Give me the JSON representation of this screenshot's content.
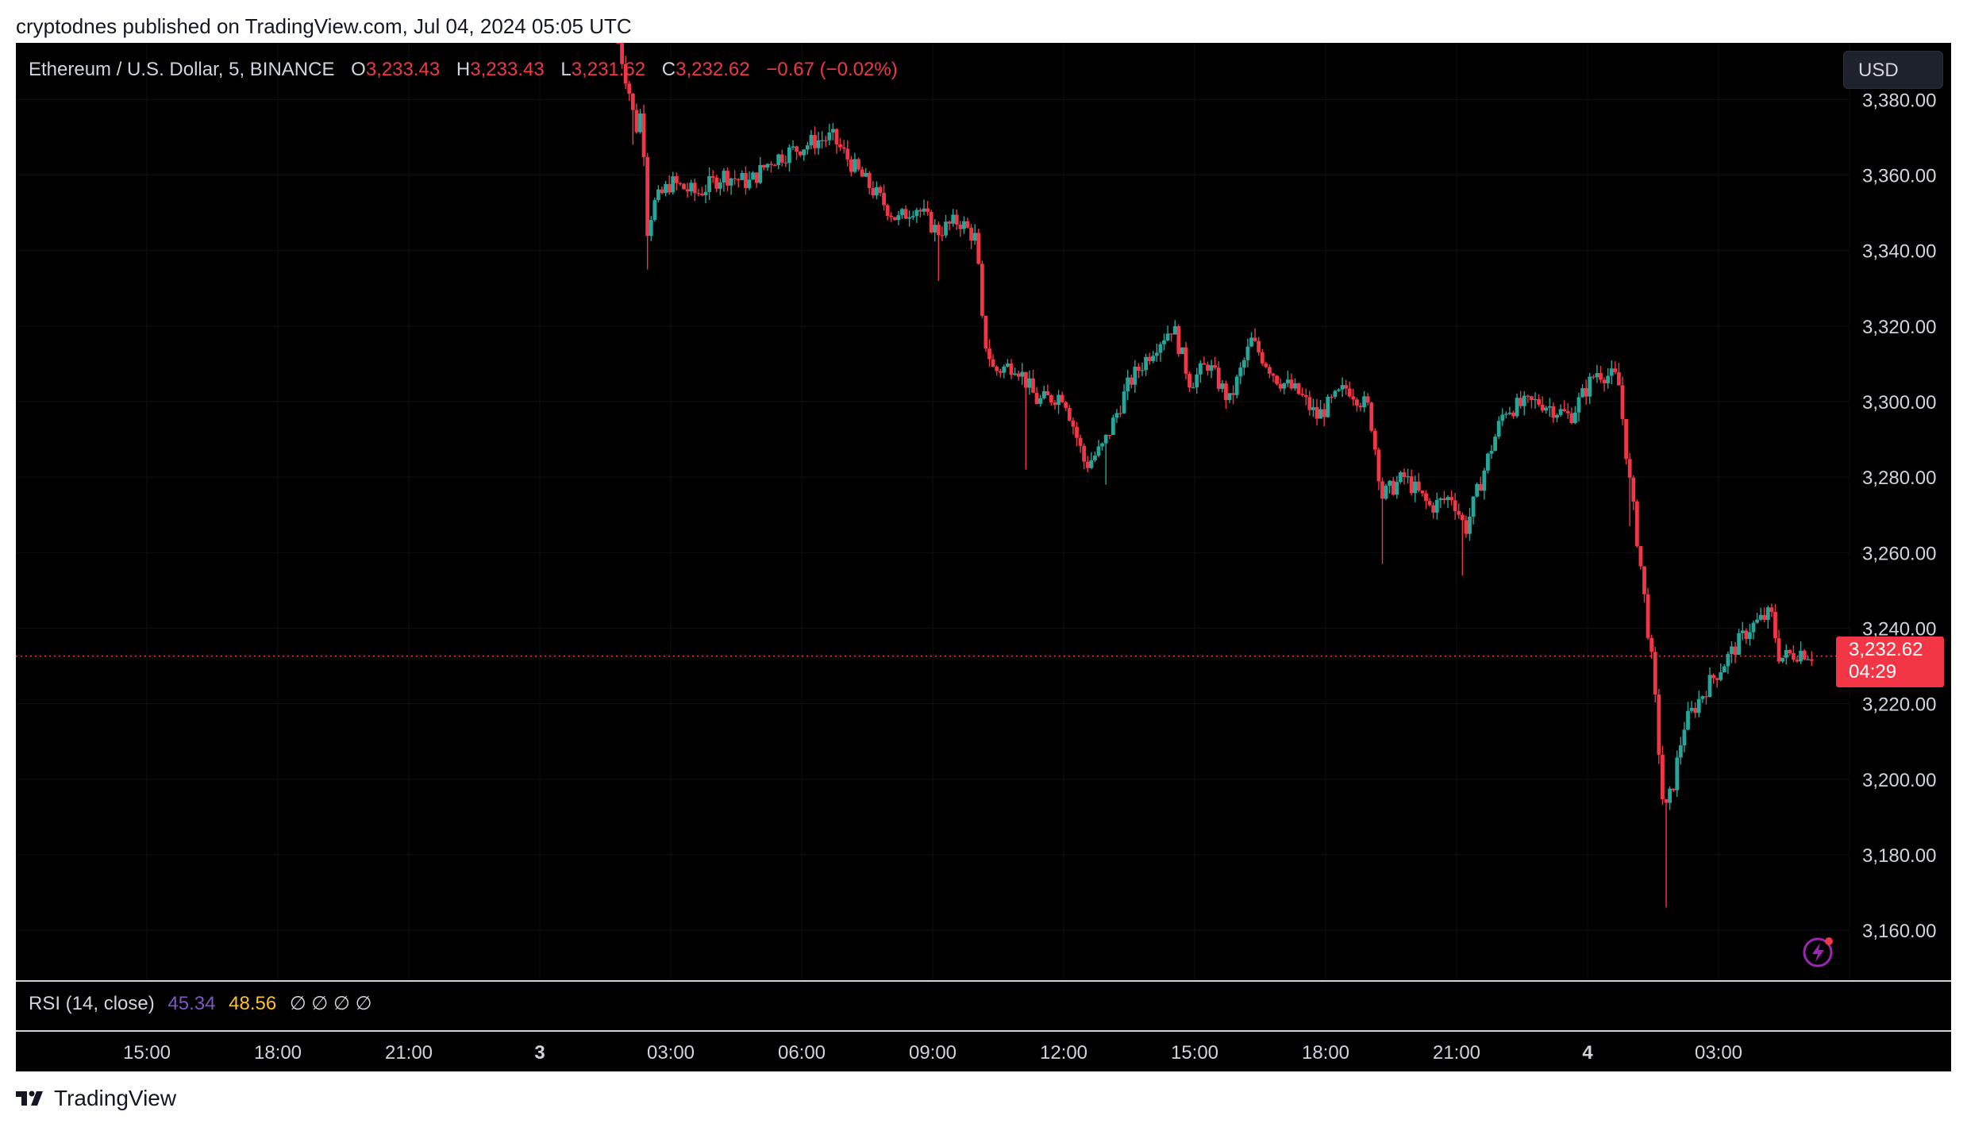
{
  "header": {
    "published_line": "cryptodnes published on TradingView.com, Jul 04, 2024 05:05 UTC"
  },
  "legend": {
    "symbol": "Ethereum / U.S. Dollar, 5, BINANCE",
    "open_label": "O",
    "open": "3,233.43",
    "high_label": "H",
    "high": "3,233.43",
    "low_label": "L",
    "low": "3,231.62",
    "close_label": "C",
    "close": "3,232.62",
    "change": "−0.67 (−0.02%)"
  },
  "currency_button": "USD",
  "price_tag": {
    "price": "3,232.62",
    "countdown": "04:29"
  },
  "rsi": {
    "label": "RSI (14, close)",
    "value1": "45.34",
    "value2": "48.56",
    "empty_values": "∅ ∅ ∅ ∅"
  },
  "brand": {
    "logo_text": "TV",
    "name": "TradingView"
  },
  "icons": {
    "lightning": "lightning-icon",
    "logo": "tradingview-logo-icon"
  },
  "colors": {
    "up": "#26a69a",
    "down": "#f23645",
    "background": "#000000",
    "text": "#d1d4dc",
    "rsi_value": "#7e57c2",
    "rsi_ma": "#fbc02d"
  },
  "chart_data": {
    "type": "candlestick",
    "symbol": "Ethereum / U.S. Dollar",
    "interval_minutes": 5,
    "exchange": "BINANCE",
    "ylim": [
      3147,
      3395
    ],
    "y_ticks": [
      3160,
      3180,
      3200,
      3220,
      3240,
      3260,
      3280,
      3300,
      3320,
      3340,
      3360,
      3380
    ],
    "y_tick_labels": [
      "3,160.00",
      "3,180.00",
      "3,200.00",
      "3,220.00",
      "3,240.00",
      "3,260.00",
      "3,280.00",
      "3,300.00",
      "3,320.00",
      "3,340.00",
      "3,360.00",
      "3,380.00"
    ],
    "x_ticks": [
      {
        "label": "15:00",
        "bold": false
      },
      {
        "label": "18:00",
        "bold": false
      },
      {
        "label": "21:00",
        "bold": false
      },
      {
        "label": "3",
        "bold": true
      },
      {
        "label": "03:00",
        "bold": false
      },
      {
        "label": "06:00",
        "bold": false
      },
      {
        "label": "09:00",
        "bold": false
      },
      {
        "label": "12:00",
        "bold": false
      },
      {
        "label": "15:00",
        "bold": false
      },
      {
        "label": "18:00",
        "bold": false
      },
      {
        "label": "21:00",
        "bold": false
      },
      {
        "label": "4",
        "bold": true
      },
      {
        "label": "03:00",
        "bold": false
      }
    ],
    "x_tick_hours": [
      15,
      18,
      21,
      24,
      27,
      30,
      33,
      36,
      39,
      42,
      45,
      48,
      51
    ],
    "x_range_hours": [
      12,
      54
    ],
    "data_start_hour": 25.8,
    "last_price": 3232.62,
    "close_anchors": [
      [
        25.8,
        3395
      ],
      [
        26.05,
        3382
      ],
      [
        26.2,
        3372
      ],
      [
        26.35,
        3378
      ],
      [
        26.45,
        3345
      ],
      [
        26.6,
        3352
      ],
      [
        27.0,
        3358
      ],
      [
        27.6,
        3355
      ],
      [
        28.2,
        3360
      ],
      [
        28.8,
        3358
      ],
      [
        29.3,
        3364
      ],
      [
        30.3,
        3369
      ],
      [
        30.7,
        3370
      ],
      [
        31.2,
        3362
      ],
      [
        31.7,
        3355
      ],
      [
        32.2,
        3348
      ],
      [
        32.6,
        3352
      ],
      [
        33.1,
        3345
      ],
      [
        33.6,
        3348
      ],
      [
        34.0,
        3343
      ],
      [
        34.15,
        3318
      ],
      [
        34.4,
        3308
      ],
      [
        34.9,
        3310
      ],
      [
        35.4,
        3300
      ],
      [
        36.0,
        3302
      ],
      [
        36.5,
        3283
      ],
      [
        36.9,
        3288
      ],
      [
        37.5,
        3305
      ],
      [
        38.1,
        3315
      ],
      [
        38.5,
        3320
      ],
      [
        38.9,
        3305
      ],
      [
        39.3,
        3310
      ],
      [
        39.8,
        3300
      ],
      [
        40.3,
        3316
      ],
      [
        40.9,
        3306
      ],
      [
        41.4,
        3302
      ],
      [
        41.8,
        3296
      ],
      [
        42.5,
        3304
      ],
      [
        43.0,
        3298
      ],
      [
        43.3,
        3275
      ],
      [
        43.8,
        3280
      ],
      [
        44.4,
        3272
      ],
      [
        44.9,
        3275
      ],
      [
        45.2,
        3266
      ],
      [
        45.8,
        3288
      ],
      [
        46.1,
        3298
      ],
      [
        46.9,
        3300
      ],
      [
        47.6,
        3296
      ],
      [
        48.2,
        3308
      ],
      [
        48.7,
        3306
      ],
      [
        48.95,
        3280
      ],
      [
        49.2,
        3258
      ],
      [
        49.5,
        3228
      ],
      [
        49.75,
        3190
      ],
      [
        49.95,
        3198
      ],
      [
        50.2,
        3214
      ],
      [
        50.7,
        3224
      ],
      [
        51.2,
        3232
      ],
      [
        51.7,
        3240
      ],
      [
        52.2,
        3244
      ],
      [
        52.4,
        3232
      ],
      [
        52.9,
        3234
      ],
      [
        53.2,
        3232.62
      ]
    ],
    "wicks": [
      {
        "h": 26.1,
        "low": 3368
      },
      {
        "h": 26.45,
        "low": 3335
      },
      {
        "h": 33.1,
        "low": 3332
      },
      {
        "h": 35.1,
        "low": 3282
      },
      {
        "h": 37.0,
        "low": 3278
      },
      {
        "h": 43.3,
        "low": 3257
      },
      {
        "h": 45.1,
        "low": 3254
      },
      {
        "h": 49.0,
        "low": 3267
      },
      {
        "h": 49.8,
        "low": 3166
      }
    ]
  }
}
